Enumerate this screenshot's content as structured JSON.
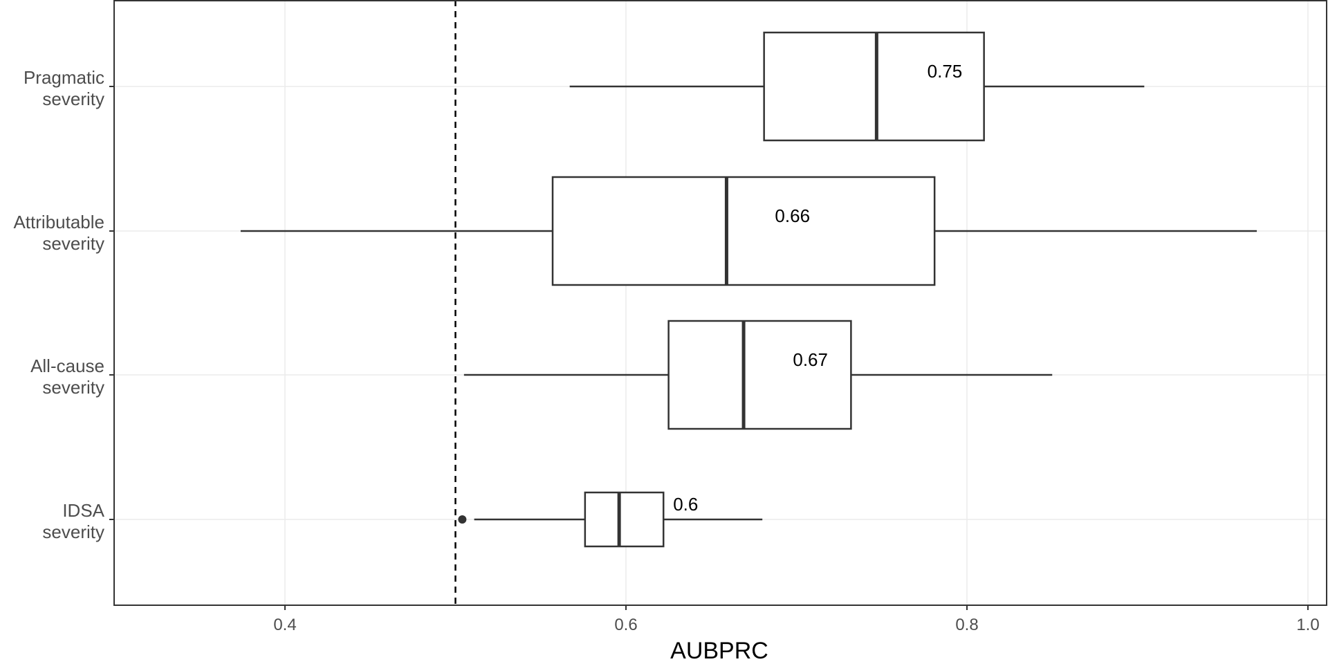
{
  "chart_data": {
    "type": "boxplot",
    "orientation": "horizontal",
    "title": "",
    "xlabel": "AUBPRC",
    "ylabel": "",
    "xlim": [
      0.3,
      1.0
    ],
    "x_ticks": [
      {
        "value": 0.4,
        "label": "0.4"
      },
      {
        "value": 0.6,
        "label": "0.6"
      },
      {
        "value": 0.8,
        "label": "0.8"
      },
      {
        "value": 1.0,
        "label": "1.0"
      }
    ],
    "grid": true,
    "reference_line": {
      "value": 0.5,
      "style": "dashed"
    },
    "categories": [
      {
        "label_lines": [
          "Pragmatic",
          "severity"
        ],
        "whisker_low": 0.567,
        "q1": 0.681,
        "median": 0.747,
        "q3": 0.81,
        "whisker_high": 0.904,
        "outliers": [],
        "median_label": "0.75"
      },
      {
        "label_lines": [
          "Attributable",
          "severity"
        ],
        "whisker_low": 0.374,
        "q1": 0.557,
        "median": 0.659,
        "q3": 0.781,
        "whisker_high": 0.97,
        "outliers": [],
        "median_label": "0.66"
      },
      {
        "label_lines": [
          "All-cause",
          "severity"
        ],
        "whisker_low": 0.505,
        "q1": 0.625,
        "median": 0.669,
        "q3": 0.732,
        "whisker_high": 0.85,
        "outliers": [],
        "median_label": "0.67"
      },
      {
        "label_lines": [
          "IDSA",
          "severity"
        ],
        "whisker_low": 0.511,
        "q1": 0.576,
        "median": 0.596,
        "q3": 0.622,
        "whisker_high": 0.68,
        "outliers": [
          0.504
        ],
        "median_label": "0.6"
      }
    ],
    "colors": {
      "panel_border": "#333333",
      "grid": "#ebebeb",
      "box_stroke": "#333333",
      "box_fill": "#ffffff",
      "median_stroke": "#333333",
      "reference_line": "#000000"
    }
  }
}
